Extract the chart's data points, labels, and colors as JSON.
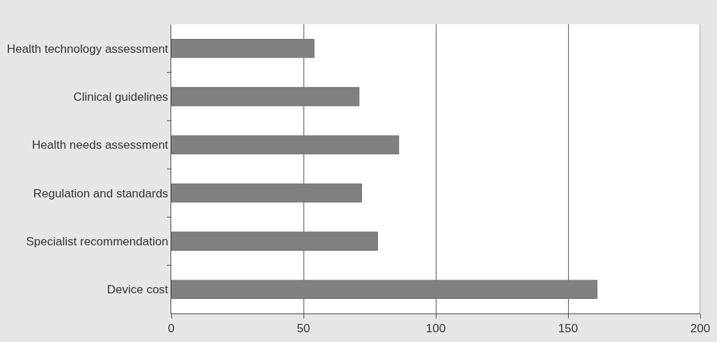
{
  "chart_data": {
    "type": "bar",
    "orientation": "horizontal",
    "categories": [
      "Health technology assessment",
      "Clinical guidelines",
      "Health needs assessment",
      "Regulation and standards",
      "Specialist recommendation",
      "Device cost"
    ],
    "values": [
      54,
      71,
      86,
      72,
      78,
      161
    ],
    "color": "#808080",
    "xlim": [
      0,
      200
    ],
    "xticks": [
      0,
      50,
      100,
      150,
      200
    ],
    "grid": "x"
  }
}
